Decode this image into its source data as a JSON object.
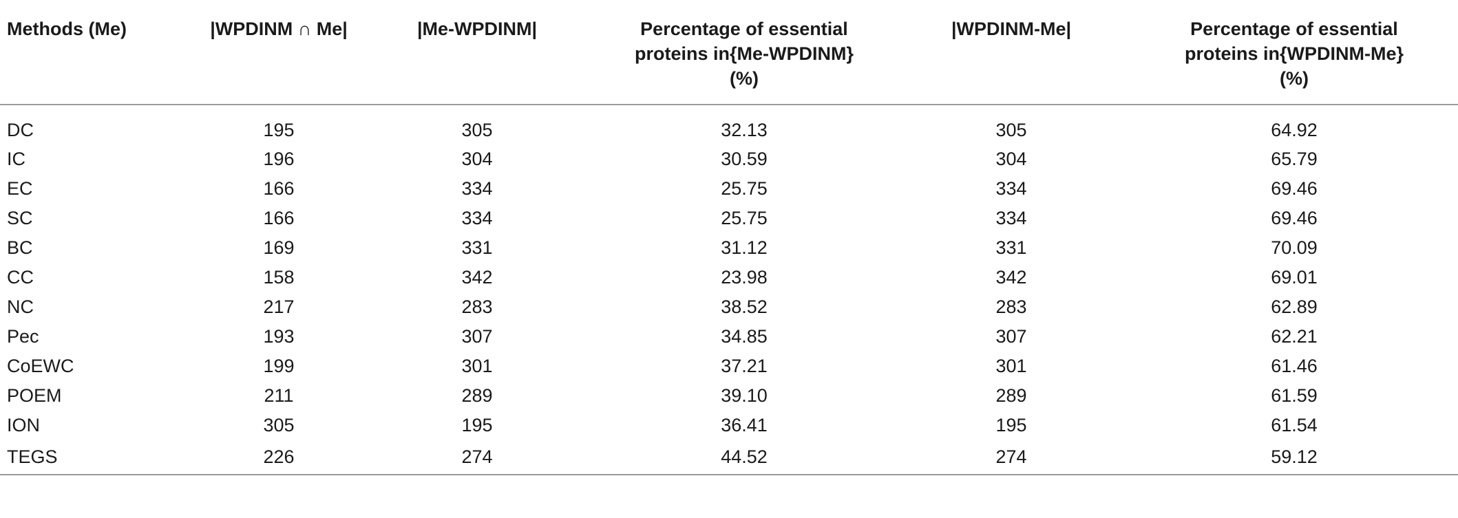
{
  "table": {
    "headers": [
      "Methods (Me)",
      "|WPDINM ∩ Me|",
      "|Me-WPDINM|",
      "Percentage of essential proteins in{Me-WPDINM} (%)",
      "|WPDINM-Me|",
      "Percentage of essential proteins in{WPDINM-Me} (%)"
    ],
    "header_lines": [
      [
        "Methods (Me)"
      ],
      [
        "|WPDINM ∩ Me|"
      ],
      [
        "|Me-WPDINM|"
      ],
      [
        "Percentage of essential",
        "proteins in{Me-WPDINM}",
        "(%)"
      ],
      [
        "|WPDINM-Me|"
      ],
      [
        "Percentage of essential",
        "proteins in{WPDINM-Me}",
        "(%)"
      ]
    ],
    "rows": [
      [
        "DC",
        "195",
        "305",
        "32.13",
        "305",
        "64.92"
      ],
      [
        "IC",
        "196",
        "304",
        "30.59",
        "304",
        "65.79"
      ],
      [
        "EC",
        "166",
        "334",
        "25.75",
        "334",
        "69.46"
      ],
      [
        "SC",
        "166",
        "334",
        "25.75",
        "334",
        "69.46"
      ],
      [
        "BC",
        "169",
        "331",
        "31.12",
        "331",
        "70.09"
      ],
      [
        "CC",
        "158",
        "342",
        "23.98",
        "342",
        "69.01"
      ],
      [
        "NC",
        "217",
        "283",
        "38.52",
        "283",
        "62.89"
      ],
      [
        "Pec",
        "193",
        "307",
        "34.85",
        "307",
        "62.21"
      ],
      [
        "CoEWC",
        "199",
        "301",
        "37.21",
        "301",
        "61.46"
      ],
      [
        "POEM",
        "211",
        "289",
        "39.10",
        "289",
        "61.59"
      ],
      [
        "ION",
        "305",
        "195",
        "36.41",
        "195",
        "61.54"
      ],
      [
        "TEGS",
        "226",
        "274",
        "44.52",
        "274",
        "59.12"
      ]
    ]
  }
}
